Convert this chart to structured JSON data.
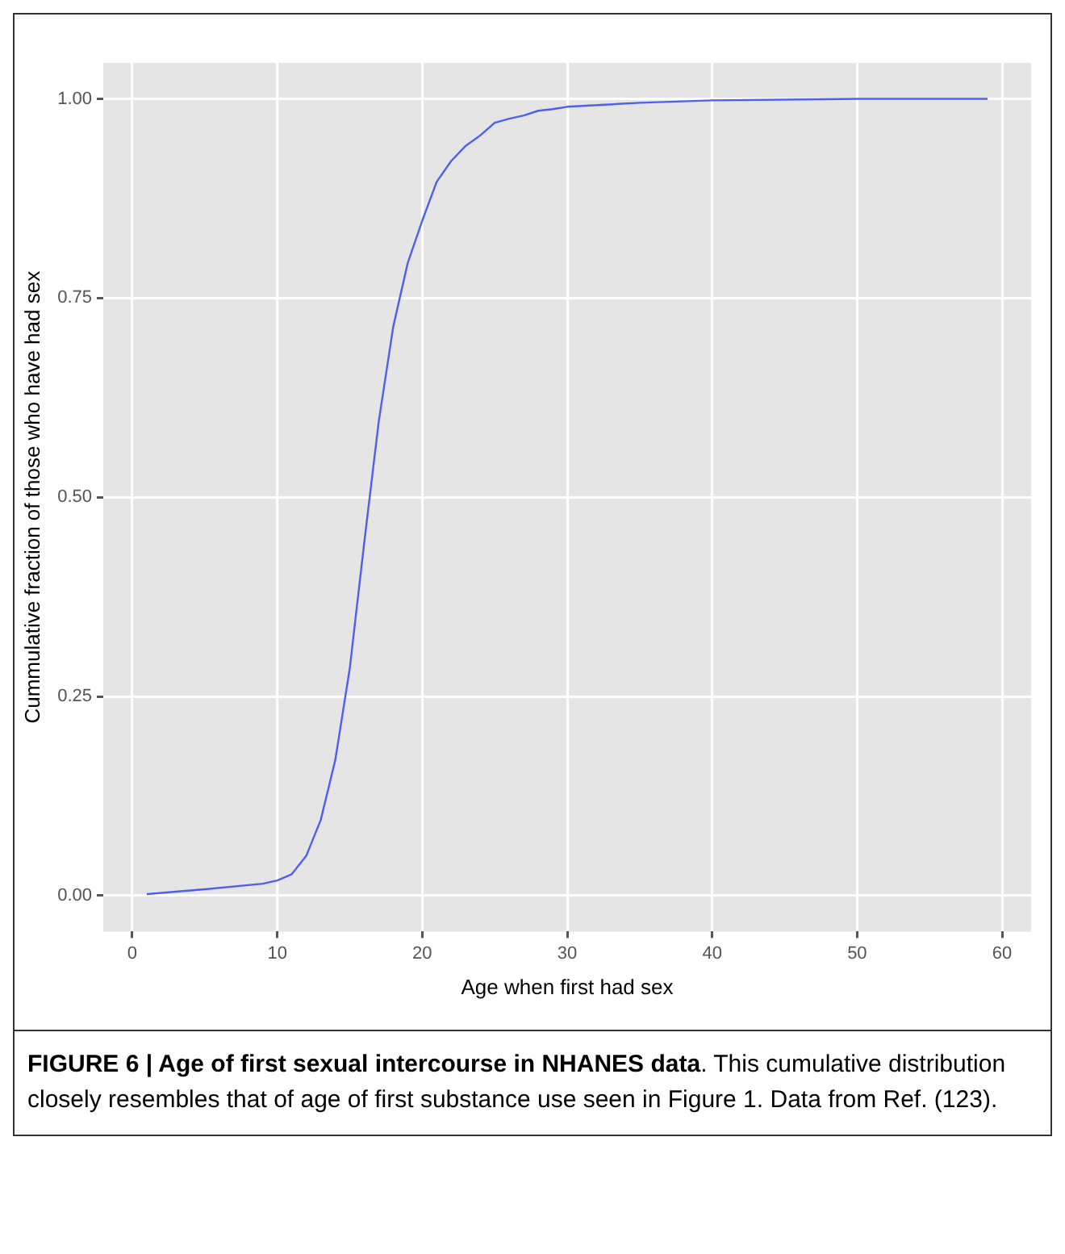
{
  "chart_data": {
    "type": "line",
    "title": "FIGURE 6 | Age of first sexual intercourse in NHANES data",
    "annotations": [
      ". This cumulative distribution closely resembles that of age of first substance use seen in Figure 1. Data from Ref. (123)."
    ],
    "xlabel": "Age when first had sex",
    "ylabel": "Cummulative fraction of those who have had sex",
    "x": [
      1,
      5,
      9,
      10,
      11,
      12,
      13,
      14,
      15,
      16,
      17,
      18,
      19,
      20,
      21,
      22,
      23,
      24,
      25,
      26,
      27,
      28,
      29,
      30,
      35,
      40,
      50,
      59
    ],
    "series": [
      {
        "color": "#4d5ff0",
        "values": [
          0.002,
          0.008,
          0.015,
          0.019,
          0.027,
          0.05,
          0.095,
          0.17,
          0.285,
          0.443,
          0.595,
          0.714,
          0.794,
          0.847,
          0.896,
          0.922,
          0.941,
          0.954,
          0.97,
          0.975,
          0.979,
          0.985,
          0.987,
          0.99,
          0.995,
          0.998,
          1.0,
          1.0
        ]
      }
    ],
    "xlim": [
      -2,
      62
    ],
    "xticks": [
      0,
      10,
      20,
      30,
      40,
      50,
      60
    ],
    "ylim": [
      -0.045,
      1.045
    ],
    "yticks": [
      {
        "value": 0,
        "label": "0.00"
      },
      {
        "value": 0.25,
        "label": "0.25"
      },
      {
        "value": 0.5,
        "label": "0.50"
      },
      {
        "value": 0.75,
        "label": "0.75"
      },
      {
        "value": 1,
        "label": "1.00"
      }
    ],
    "grid": true,
    "legend": false,
    "marker": "none",
    "line_style": "solid"
  }
}
